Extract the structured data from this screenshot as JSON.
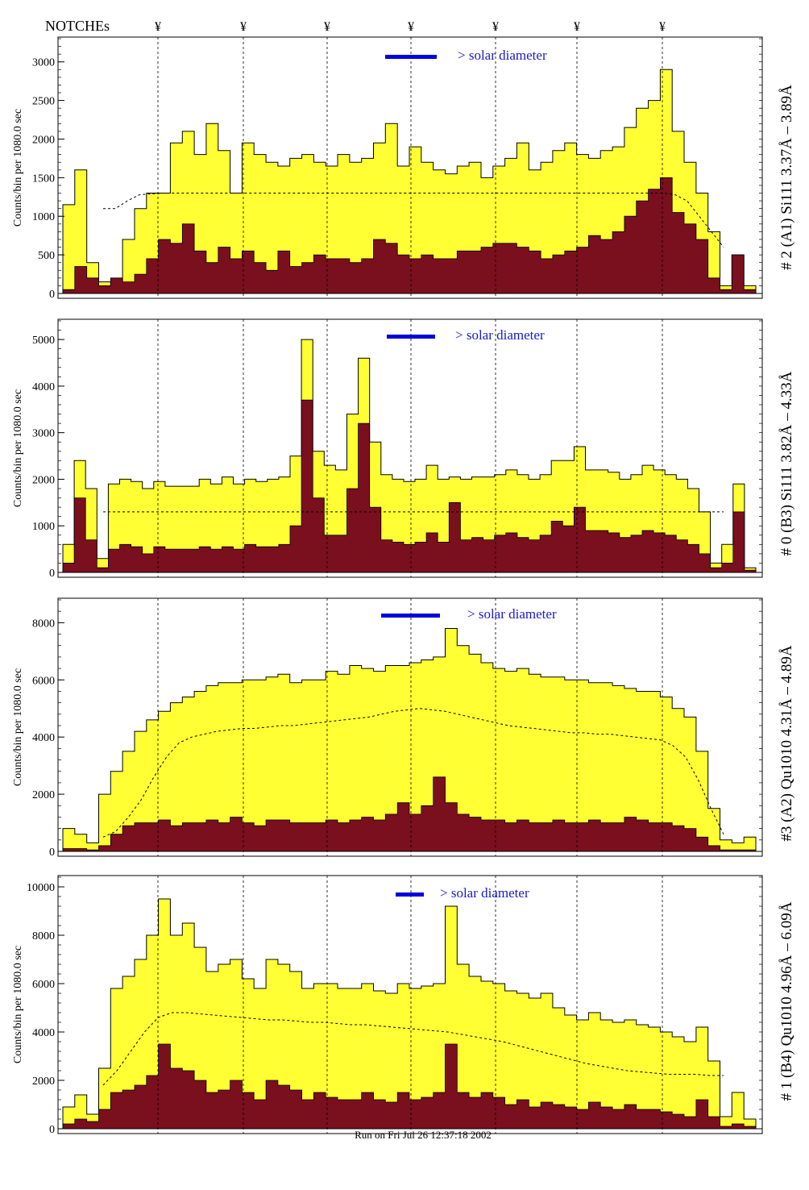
{
  "header": {
    "notches_label": "NOTCHEs",
    "notch_symbol": "¥"
  },
  "footer": {
    "run_label": "Run on Fri Jul 26 12:37:18 2002"
  },
  "colors": {
    "fill_total": "#ffff33",
    "fill_dark": "#7a0f1e",
    "line": "#000000",
    "solar_bar": "#0000dd",
    "annotation_blue": "#1a1acc"
  },
  "chart_data": [
    {
      "type": "area",
      "title": "# 2 (A1) Si111  3.37Å – 3.89Å",
      "ylabel": "Counts/bin per   1080.0 sec",
      "ylim": [
        0,
        3300
      ],
      "yticks": [
        0,
        500,
        1000,
        1500,
        2000,
        2500,
        3000
      ],
      "annotation": "> solar diameter",
      "grid": false,
      "series": [
        {
          "values": [
            1150,
            1600,
            400,
            150,
            100,
            700,
            1100,
            1300,
            1300,
            1950,
            2100,
            1800,
            2200,
            1850,
            1300,
            1950,
            1800,
            1700,
            1650,
            1750,
            1800,
            1700,
            1650,
            1800,
            1700,
            1750,
            1950,
            2200,
            1650,
            1900,
            1700,
            1600,
            1550,
            1650,
            1700,
            1500,
            1650,
            1750,
            1950,
            1600,
            1700,
            1850,
            1950,
            1800,
            1750,
            1850,
            1900,
            2150,
            2400,
            2500,
            2900,
            2100,
            1700,
            1300,
            800,
            100,
            500,
            100
          ]
        },
        {
          "values": [
            50,
            350,
            200,
            100,
            200,
            150,
            250,
            450,
            700,
            650,
            900,
            550,
            400,
            600,
            450,
            550,
            400,
            300,
            550,
            350,
            400,
            500,
            450,
            450,
            400,
            450,
            700,
            650,
            500,
            450,
            500,
            450,
            450,
            550,
            550,
            600,
            650,
            650,
            600,
            550,
            450,
            500,
            550,
            600,
            750,
            700,
            800,
            1000,
            1200,
            1350,
            1500,
            1050,
            900,
            700,
            200,
            50,
            500,
            50
          ]
        },
        {
          "values": [
            1100,
            1100,
            1200,
            1280,
            1290,
            1300,
            1300,
            1300,
            1300,
            1300,
            1300,
            1300,
            1300,
            1300,
            1300,
            1300,
            1300,
            1300,
            1300,
            1300,
            1300,
            1300,
            1300,
            1300,
            1300,
            1300,
            1300,
            1300,
            1300,
            1300,
            1300,
            1300,
            1300,
            1300,
            1300,
            1300,
            1300,
            1300,
            1300,
            1300,
            1300,
            1300,
            1300,
            1300,
            1300,
            1300,
            1300,
            1280,
            1200,
            1000,
            800,
            600
          ]
        }
      ]
    },
    {
      "type": "area",
      "title": "# 0 (B3) Si111  3.82Å – 4.33Å",
      "ylabel": "Counts/bin per   1080.0 sec",
      "ylim": [
        0,
        5400
      ],
      "yticks": [
        0,
        1000,
        2000,
        3000,
        4000,
        5000
      ],
      "annotation": "> solar diameter",
      "grid": false,
      "series": [
        {
          "values": [
            600,
            2400,
            1800,
            300,
            1900,
            2000,
            1950,
            1800,
            1950,
            1850,
            1850,
            1850,
            2000,
            1900,
            2050,
            1900,
            2000,
            1950,
            2000,
            2050,
            2500,
            5000,
            2600,
            2300,
            2200,
            3400,
            4600,
            2800,
            2100,
            2000,
            1950,
            2000,
            2300,
            2000,
            2050,
            2000,
            2050,
            2050,
            2100,
            2200,
            2100,
            2000,
            2100,
            2400,
            2400,
            2700,
            2200,
            2200,
            2150,
            2000,
            2100,
            2300,
            2200,
            2100,
            2000,
            1800,
            1300,
            200,
            600,
            1900,
            100
          ]
        },
        {
          "values": [
            200,
            1600,
            700,
            100,
            500,
            600,
            550,
            400,
            550,
            500,
            500,
            500,
            550,
            500,
            550,
            500,
            600,
            550,
            550,
            600,
            1000,
            3700,
            1600,
            800,
            800,
            1800,
            3200,
            1400,
            700,
            650,
            600,
            650,
            850,
            650,
            1500,
            700,
            750,
            700,
            800,
            850,
            750,
            700,
            800,
            1100,
            1000,
            1400,
            900,
            900,
            850,
            750,
            800,
            900,
            850,
            800,
            700,
            600,
            400,
            100,
            200,
            1300,
            50
          ]
        },
        {
          "values": [
            1300,
            1300,
            1300,
            1300,
            1300,
            1300,
            1300,
            1300,
            1300,
            1300,
            1300,
            1300,
            1300,
            1300,
            1300,
            1300,
            1300,
            1300,
            1300,
            1300,
            1300,
            1300,
            1300,
            1300,
            1300,
            1300,
            1300,
            1300,
            1300,
            1300,
            1300,
            1300,
            1300,
            1300,
            1300,
            1300,
            1300,
            1300,
            1300,
            1300,
            1300,
            1300,
            1300,
            1300,
            1300,
            1300,
            1300,
            1300,
            1300,
            1300
          ]
        }
      ]
    },
    {
      "type": "area",
      "title": "#3 (A2) Qu1010  4.31Å – 4.89Å",
      "ylabel": "Counts/bin per   1080.0 sec",
      "ylim": [
        0,
        8800
      ],
      "yticks": [
        0,
        2000,
        4000,
        6000,
        8000
      ],
      "annotation": "> solar diameter",
      "grid": false,
      "series": [
        {
          "values": [
            800,
            600,
            300,
            2000,
            2800,
            3500,
            4200,
            4600,
            4900,
            5200,
            5400,
            5600,
            5800,
            5900,
            5900,
            6000,
            6000,
            6100,
            6200,
            5900,
            6000,
            6000,
            6300,
            6200,
            6500,
            6400,
            6300,
            6500,
            6500,
            6600,
            6700,
            6800,
            7800,
            7200,
            6900,
            6600,
            6400,
            6300,
            6400,
            6200,
            6100,
            6100,
            6000,
            6000,
            5900,
            5900,
            5800,
            5700,
            5600,
            5600,
            5400,
            5000,
            4700,
            3500,
            1500,
            400,
            300,
            500
          ]
        },
        {
          "values": [
            100,
            100,
            50,
            200,
            600,
            900,
            1000,
            1000,
            1100,
            900,
            1000,
            1000,
            1100,
            1000,
            1200,
            1000,
            900,
            1100,
            1100,
            1000,
            1000,
            1000,
            1100,
            1000,
            1100,
            1200,
            1100,
            1300,
            1700,
            1300,
            1600,
            2600,
            1700,
            1300,
            1200,
            1100,
            1100,
            1000,
            1100,
            1000,
            1000,
            1100,
            1000,
            1000,
            1100,
            1000,
            1000,
            1200,
            1100,
            1000,
            1000,
            900,
            800,
            500,
            200,
            50,
            50,
            50
          ]
        },
        {
          "values": [
            500,
            700,
            1200,
            1800,
            2600,
            3300,
            3800,
            4000,
            4100,
            4200,
            4250,
            4300,
            4300,
            4350,
            4400,
            4400,
            4450,
            4500,
            4550,
            4600,
            4650,
            4700,
            4800,
            4900,
            4950,
            5000,
            4950,
            4900,
            4800,
            4700,
            4600,
            4500,
            4400,
            4350,
            4300,
            4250,
            4200,
            4150,
            4150,
            4100,
            4100,
            4050,
            4000,
            3950,
            3900,
            3700,
            3300,
            2500,
            1500,
            600
          ]
        }
      ]
    },
    {
      "type": "area",
      "title": "# 1 (B4) Qu1010 4.96Å – 6.09Å",
      "ylabel": "Counts/bin per   1080.0 sec",
      "ylim": [
        0,
        10400
      ],
      "yticks": [
        0,
        2000,
        4000,
        6000,
        8000,
        10000
      ],
      "annotation": "> solar diameter",
      "grid": false,
      "series": [
        {
          "values": [
            900,
            1400,
            600,
            2500,
            5800,
            6300,
            7000,
            8000,
            9500,
            8000,
            8500,
            7500,
            6500,
            6800,
            7000,
            6200,
            5800,
            7000,
            6800,
            6500,
            5800,
            6000,
            6000,
            5800,
            5800,
            6000,
            5700,
            5600,
            6000,
            5800,
            5900,
            6000,
            9200,
            6800,
            6300,
            6100,
            6000,
            5700,
            5600,
            5400,
            5600,
            5000,
            4700,
            4500,
            4800,
            4500,
            4400,
            4500,
            4300,
            4200,
            4000,
            3800,
            3600,
            4200,
            2800,
            500,
            1500,
            400
          ]
        },
        {
          "values": [
            200,
            400,
            300,
            800,
            1500,
            1600,
            1800,
            2200,
            3500,
            2500,
            2400,
            2000,
            1500,
            1600,
            2000,
            1500,
            1200,
            2000,
            1800,
            1600,
            1200,
            1500,
            1300,
            1200,
            1200,
            1500,
            1200,
            1100,
            1500,
            1200,
            1300,
            1500,
            3500,
            1500,
            1300,
            1500,
            1300,
            1000,
            1200,
            900,
            1100,
            1000,
            900,
            800,
            1100,
            900,
            800,
            1000,
            800,
            800,
            700,
            600,
            500,
            1200,
            500,
            100,
            200,
            100
          ]
        },
        {
          "values": [
            1800,
            2400,
            3200,
            4000,
            4600,
            4800,
            4800,
            4750,
            4700,
            4650,
            4600,
            4550,
            4500,
            4500,
            4450,
            4400,
            4400,
            4350,
            4300,
            4300,
            4250,
            4200,
            4150,
            4100,
            4050,
            4000,
            3900,
            3800,
            3700,
            3600,
            3450,
            3300,
            3150,
            3000,
            2850,
            2700,
            2600,
            2500,
            2400,
            2350,
            2300,
            2250,
            2250,
            2250,
            2200,
            2200
          ]
        }
      ]
    }
  ]
}
